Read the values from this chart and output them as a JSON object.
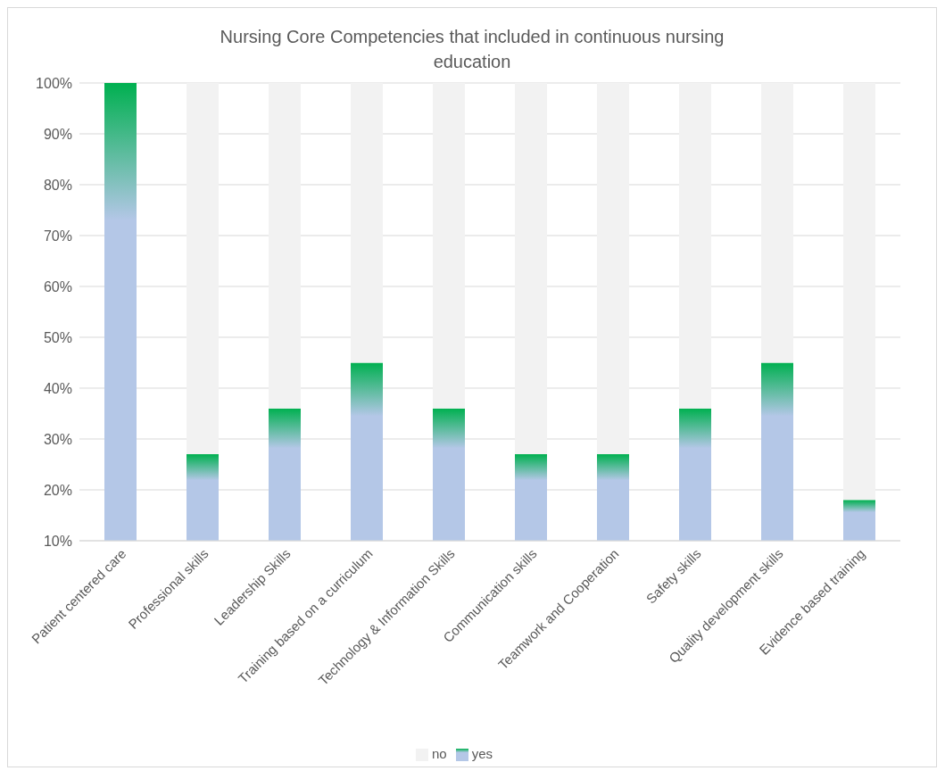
{
  "chart_data": {
    "type": "bar",
    "title": "Nursing Core Competencies that included in continuous nursing education",
    "categories": [
      "Patient centered care",
      "Professional skills",
      "Leadership Skills",
      "Training based on a curriculum",
      "Technology & Information Skills",
      "Communication skills",
      "Teamwork and Cooperation",
      "Safety skills",
      "Quality development skills",
      "Evidence based training"
    ],
    "series": [
      {
        "name": "yes",
        "color": "#00b050",
        "values": [
          100,
          27,
          36,
          45,
          36,
          27,
          27,
          36,
          45,
          18
        ]
      },
      {
        "name": "no",
        "color": "#f2f2f2",
        "values": [
          null,
          73,
          64,
          55,
          64,
          73,
          73,
          64,
          55,
          82
        ]
      }
    ],
    "stacked": true,
    "ylim": [
      10,
      100
    ],
    "yticks": [
      {
        "value": 10,
        "label": "10%"
      },
      {
        "value": 20,
        "label": "20%"
      },
      {
        "value": 30,
        "label": "30%"
      },
      {
        "value": 40,
        "label": "40%"
      },
      {
        "value": 50,
        "label": "50%"
      },
      {
        "value": 60,
        "label": "60%"
      },
      {
        "value": 70,
        "label": "70%"
      },
      {
        "value": 80,
        "label": "80%"
      },
      {
        "value": 90,
        "label": "90%"
      },
      {
        "value": 100,
        "label": "100%"
      }
    ],
    "grid": "y",
    "legend": "bottom"
  }
}
